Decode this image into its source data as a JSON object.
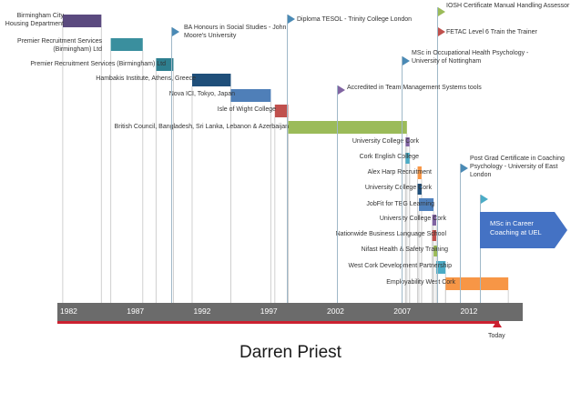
{
  "name": "Darren Priest",
  "today_label": "Today",
  "years": [
    "1982",
    "1987",
    "1992",
    "1997",
    "2002",
    "2007",
    "2012"
  ],
  "bars": [
    {
      "label": "Birmingham City Housing Department",
      "start": 1982.4,
      "end": 1985.3,
      "color": "#5b4a7f"
    },
    {
      "label": "Premier Recruitment Services (Birmingham) Ltd",
      "start": 1986.0,
      "end": 1988.4,
      "color": "#3a8f9e"
    },
    {
      "label": "Premier Recruitment Services (Birmingham) Ltd",
      "start": 1989.4,
      "end": 1990.7,
      "color": "#2e7f8f"
    },
    {
      "label": "Hambakis Institute, Athens, Greece",
      "start": 1992.1,
      "end": 1995.0,
      "color": "#1f4f7a"
    },
    {
      "label": "Nova ICI, Tokyo, Japan",
      "start": 1995.0,
      "end": 1998.0,
      "color": "#4f7fb8"
    },
    {
      "label": "Isle of Wight College",
      "start": 1998.3,
      "end": 1999.3,
      "color": "#c0504d"
    },
    {
      "label": "British Council, Bangladesh, Sri Lanka, Lebanon & Azerbaijan",
      "start": 1999.3,
      "end": 2008.2,
      "color": "#9bbb59"
    },
    {
      "label": "University College Cork",
      "start": 2008.1,
      "end": 2008.4,
      "color": "#8064a2"
    },
    {
      "label": "Cork English College",
      "start": 2008.1,
      "end": 2008.4,
      "color": "#4bacc6"
    },
    {
      "label": "Alex Harp Recruitment",
      "start": 2009.0,
      "end": 2009.3,
      "color": "#f79646"
    },
    {
      "label": "University College Cork",
      "start": 2009.0,
      "end": 2009.3,
      "color": "#1f4f7a"
    },
    {
      "label": "JobFit for TBG Learning",
      "start": 2009.1,
      "end": 2010.2,
      "color": "#4f81bd"
    },
    {
      "label": "University College Cork",
      "start": 2010.1,
      "end": 2010.4,
      "color": "#8064a2"
    },
    {
      "label": "Nationwide Business Language School",
      "start": 2010.1,
      "end": 2010.4,
      "color": "#c0504d"
    },
    {
      "label": "Nifast Health & Safety Training",
      "start": 2010.2,
      "end": 2010.5,
      "color": "#9bbb59"
    },
    {
      "label": "West Cork Development Partnership",
      "start": 2010.4,
      "end": 2011.1,
      "color": "#4bacc6"
    },
    {
      "label": "Employability West Cork",
      "start": 2011.1,
      "end": 2015.8,
      "color": "#f79646"
    }
  ],
  "milestones": [
    {
      "text": "BA Honours in Social Studies - John Moore's University"
    },
    {
      "text": "Diploma TESOL - Trinity College London"
    },
    {
      "text": "IOSH Certificate Manual Handling Assessor"
    },
    {
      "text": "FETAC Level 6 Train the Trainer"
    },
    {
      "text": "MSc in Occupational Health Psychology - University of Nottingham"
    },
    {
      "text": "Accredited in Team Management Systems tools"
    },
    {
      "text": "Post Grad Certificate in Coaching Psychology - University of East London"
    },
    {
      "text": "MSc in Career Coaching at UEL"
    }
  ],
  "colors": {
    "axis": "#6b6b6b",
    "today_line": "#cc2030",
    "flag": "#4a8ab5",
    "callout": "#4472c4"
  }
}
